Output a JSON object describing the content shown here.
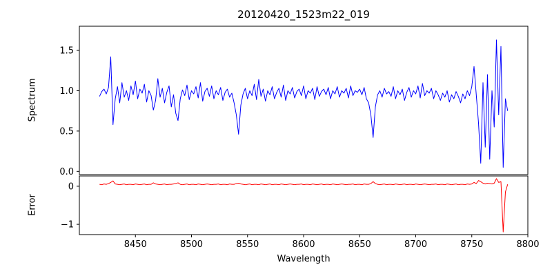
{
  "chart_data": {
    "type": "line",
    "title": "20120420_1523m22_019",
    "xlabel": "Wavelength",
    "xlim": [
      8400,
      8800
    ],
    "xticks": [
      8450,
      8500,
      8550,
      8600,
      8650,
      8700,
      8750,
      8800
    ],
    "xtick_labels": [
      "8450",
      "8500",
      "8550",
      "8600",
      "8650",
      "8700",
      "8750",
      "8800"
    ],
    "x_start": 8418,
    "x_step": 2,
    "legend": "none",
    "grid": false,
    "panels": [
      {
        "name": "spectrum",
        "ylabel": "Spectrum",
        "color": "#0000ff",
        "ylim": [
          -0.04,
          1.8
        ],
        "yticks": [
          0.0,
          0.5,
          1.0,
          1.5
        ],
        "ytick_labels": [
          "0.0",
          "0.5",
          "1.0",
          "1.5"
        ],
        "values": [
          0.93,
          0.99,
          1.02,
          0.96,
          1.04,
          1.42,
          0.58,
          0.9,
          1.05,
          0.85,
          1.1,
          0.92,
          1.0,
          0.88,
          1.06,
          0.95,
          1.12,
          0.9,
          1.02,
          0.97,
          1.08,
          0.86,
          1.0,
          0.94,
          0.76,
          0.88,
          1.15,
          0.92,
          1.03,
          0.85,
          0.98,
          1.06,
          0.8,
          0.95,
          0.72,
          0.63,
          0.9,
          1.01,
          0.94,
          1.07,
          0.89,
          1.0,
          0.96,
          1.05,
          0.91,
          1.1,
          0.87,
          0.99,
          1.03,
          0.93,
          1.06,
          0.9,
          1.0,
          0.95,
          1.04,
          0.88,
          0.98,
          1.02,
          0.92,
          0.97,
          0.85,
          0.7,
          0.46,
          0.82,
          0.96,
          1.03,
          0.9,
          1.0,
          0.94,
          1.08,
          0.89,
          1.14,
          0.93,
          1.02,
          0.87,
          1.0,
          0.95,
          1.05,
          0.9,
          0.98,
          1.03,
          0.92,
          1.07,
          0.88,
          1.0,
          0.96,
          1.04,
          0.91,
          0.99,
          1.02,
          0.94,
          1.06,
          0.9,
          1.0,
          0.97,
          1.03,
          0.89,
          1.05,
          0.93,
          0.99,
          1.02,
          0.95,
          1.04,
          0.9,
          1.0,
          0.96,
          1.05,
          0.92,
          1.0,
          0.97,
          1.03,
          0.91,
          1.06,
          0.94,
          1.0,
          0.98,
          1.02,
          0.95,
          1.04,
          0.9,
          0.85,
          0.7,
          0.42,
          0.8,
          0.95,
          1.0,
          0.92,
          1.03,
          0.96,
          0.99,
          0.93,
          1.05,
          0.9,
          1.0,
          0.95,
          1.02,
          0.88,
          0.98,
          1.04,
          0.92,
          1.0,
          0.96,
          1.06,
          0.91,
          1.09,
          0.94,
          1.0,
          0.97,
          1.03,
          0.9,
          1.0,
          0.95,
          0.88,
          0.97,
          0.92,
          1.0,
          0.86,
          0.95,
          0.9,
          0.99,
          0.93,
          0.85,
          0.96,
          0.9,
          1.0,
          0.94,
          1.05,
          1.3,
          0.95,
          0.6,
          0.1,
          1.1,
          0.3,
          1.2,
          0.15,
          1.0,
          0.55,
          1.63,
          0.7,
          1.55,
          0.05,
          0.9,
          0.75
        ]
      },
      {
        "name": "error",
        "ylabel": "Error",
        "color": "#ff0000",
        "ylim": [
          -1.27,
          0.27
        ],
        "yticks": [
          0,
          -1
        ],
        "ytick_labels": [
          "0",
          "−1"
        ],
        "values": [
          0.05,
          0.04,
          0.06,
          0.05,
          0.07,
          0.1,
          0.14,
          0.06,
          0.05,
          0.04,
          0.05,
          0.06,
          0.04,
          0.05,
          0.05,
          0.04,
          0.06,
          0.05,
          0.04,
          0.05,
          0.06,
          0.04,
          0.05,
          0.05,
          0.09,
          0.06,
          0.05,
          0.04,
          0.05,
          0.06,
          0.04,
          0.05,
          0.05,
          0.06,
          0.07,
          0.09,
          0.05,
          0.04,
          0.05,
          0.06,
          0.04,
          0.05,
          0.05,
          0.04,
          0.06,
          0.05,
          0.04,
          0.05,
          0.06,
          0.05,
          0.04,
          0.05,
          0.05,
          0.06,
          0.04,
          0.05,
          0.05,
          0.04,
          0.06,
          0.05,
          0.05,
          0.07,
          0.08,
          0.06,
          0.05,
          0.04,
          0.05,
          0.06,
          0.04,
          0.05,
          0.05,
          0.04,
          0.06,
          0.05,
          0.04,
          0.05,
          0.06,
          0.04,
          0.05,
          0.05,
          0.04,
          0.06,
          0.05,
          0.04,
          0.05,
          0.06,
          0.05,
          0.04,
          0.05,
          0.05,
          0.06,
          0.04,
          0.05,
          0.05,
          0.04,
          0.06,
          0.05,
          0.04,
          0.05,
          0.06,
          0.04,
          0.05,
          0.05,
          0.04,
          0.06,
          0.05,
          0.04,
          0.05,
          0.06,
          0.05,
          0.04,
          0.05,
          0.05,
          0.06,
          0.04,
          0.05,
          0.05,
          0.04,
          0.06,
          0.05,
          0.05,
          0.07,
          0.12,
          0.07,
          0.05,
          0.04,
          0.05,
          0.06,
          0.04,
          0.05,
          0.05,
          0.04,
          0.06,
          0.05,
          0.04,
          0.05,
          0.06,
          0.04,
          0.05,
          0.05,
          0.04,
          0.06,
          0.05,
          0.04,
          0.05,
          0.06,
          0.05,
          0.04,
          0.05,
          0.05,
          0.06,
          0.04,
          0.05,
          0.05,
          0.04,
          0.06,
          0.05,
          0.04,
          0.05,
          0.06,
          0.04,
          0.05,
          0.05,
          0.04,
          0.06,
          0.05,
          0.06,
          0.1,
          0.07,
          0.15,
          0.12,
          0.08,
          0.06,
          0.08,
          0.07,
          0.06,
          0.08,
          0.2,
          0.1,
          0.12,
          -1.2,
          -0.15,
          0.05
        ]
      }
    ]
  }
}
